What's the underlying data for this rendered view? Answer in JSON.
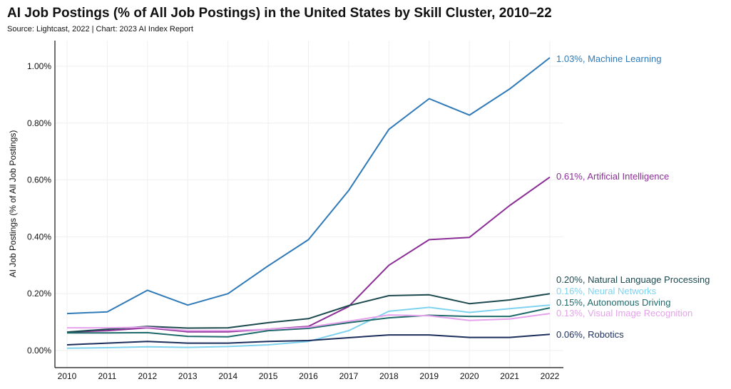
{
  "chart_data": {
    "type": "line",
    "title": "AI Job Postings (% of All Job Postings) in the United States by Skill Cluster, 2010–22",
    "subtitle": "Source: Lightcast, 2022 | Chart: 2023 AI Index Report",
    "xlabel": "",
    "ylabel": "AI Job Postings (% of All Job Postings)",
    "x": [
      2010,
      2011,
      2012,
      2013,
      2014,
      2015,
      2016,
      2017,
      2018,
      2019,
      2020,
      2021,
      2022
    ],
    "x_tick_labels": [
      "2010",
      "2011",
      "2012",
      "2013",
      "2014",
      "2015",
      "2016",
      "2017",
      "2018",
      "2019",
      "2020",
      "2021",
      "2022"
    ],
    "ylim": [
      0,
      1.05
    ],
    "y_ticks": [
      0,
      0.2,
      0.4,
      0.6,
      0.8,
      1.0
    ],
    "y_tick_labels": [
      "0.00%",
      "0.20%",
      "0.40%",
      "0.60%",
      "0.80%",
      "1.00%"
    ],
    "grid": true,
    "series": [
      {
        "name": "Machine Learning",
        "end_label": "1.03%, Machine Learning",
        "color": "#2f7ab7",
        "values": [
          0.13,
          0.136,
          0.212,
          0.16,
          0.2,
          0.298,
          0.39,
          0.563,
          0.778,
          0.886,
          0.828,
          0.92,
          1.03
        ]
      },
      {
        "name": "Artificial Intelligence",
        "end_label": "0.61%, Artificial Intelligence",
        "color": "#8b2f96",
        "values": [
          0.065,
          0.07,
          0.08,
          0.066,
          0.066,
          0.075,
          0.085,
          0.155,
          0.3,
          0.39,
          0.398,
          0.51,
          0.61
        ]
      },
      {
        "name": "Natural Language Processing",
        "end_label": "0.20%, Natural Language Processing",
        "color": "#1d4a4f",
        "values": [
          0.065,
          0.075,
          0.085,
          0.079,
          0.08,
          0.098,
          0.112,
          0.158,
          0.193,
          0.196,
          0.165,
          0.178,
          0.2
        ]
      },
      {
        "name": "Neural Networks",
        "end_label": "0.16%, Neural Networks",
        "color": "#7fd3ef",
        "values": [
          0.008,
          0.01,
          0.013,
          0.011,
          0.014,
          0.02,
          0.032,
          0.07,
          0.138,
          0.152,
          0.134,
          0.147,
          0.16
        ]
      },
      {
        "name": "Autonomous Driving",
        "end_label": "0.15%, Autonomous Driving",
        "color": "#1f6a6a",
        "values": [
          0.062,
          0.062,
          0.063,
          0.05,
          0.048,
          0.07,
          0.078,
          0.098,
          0.115,
          0.124,
          0.12,
          0.12,
          0.15
        ]
      },
      {
        "name": "Visual Image Recognition",
        "end_label": "0.13%, Visual Image Recognition",
        "color": "#e6a2ec",
        "values": [
          0.08,
          0.08,
          0.082,
          0.07,
          0.07,
          0.075,
          0.082,
          0.103,
          0.125,
          0.122,
          0.106,
          0.111,
          0.13
        ]
      },
      {
        "name": "Robotics",
        "end_label": "0.06%, Robotics",
        "color": "#1c2f5c",
        "values": [
          0.02,
          0.026,
          0.032,
          0.026,
          0.026,
          0.032,
          0.035,
          0.045,
          0.055,
          0.055,
          0.046,
          0.046,
          0.057
        ]
      }
    ]
  }
}
